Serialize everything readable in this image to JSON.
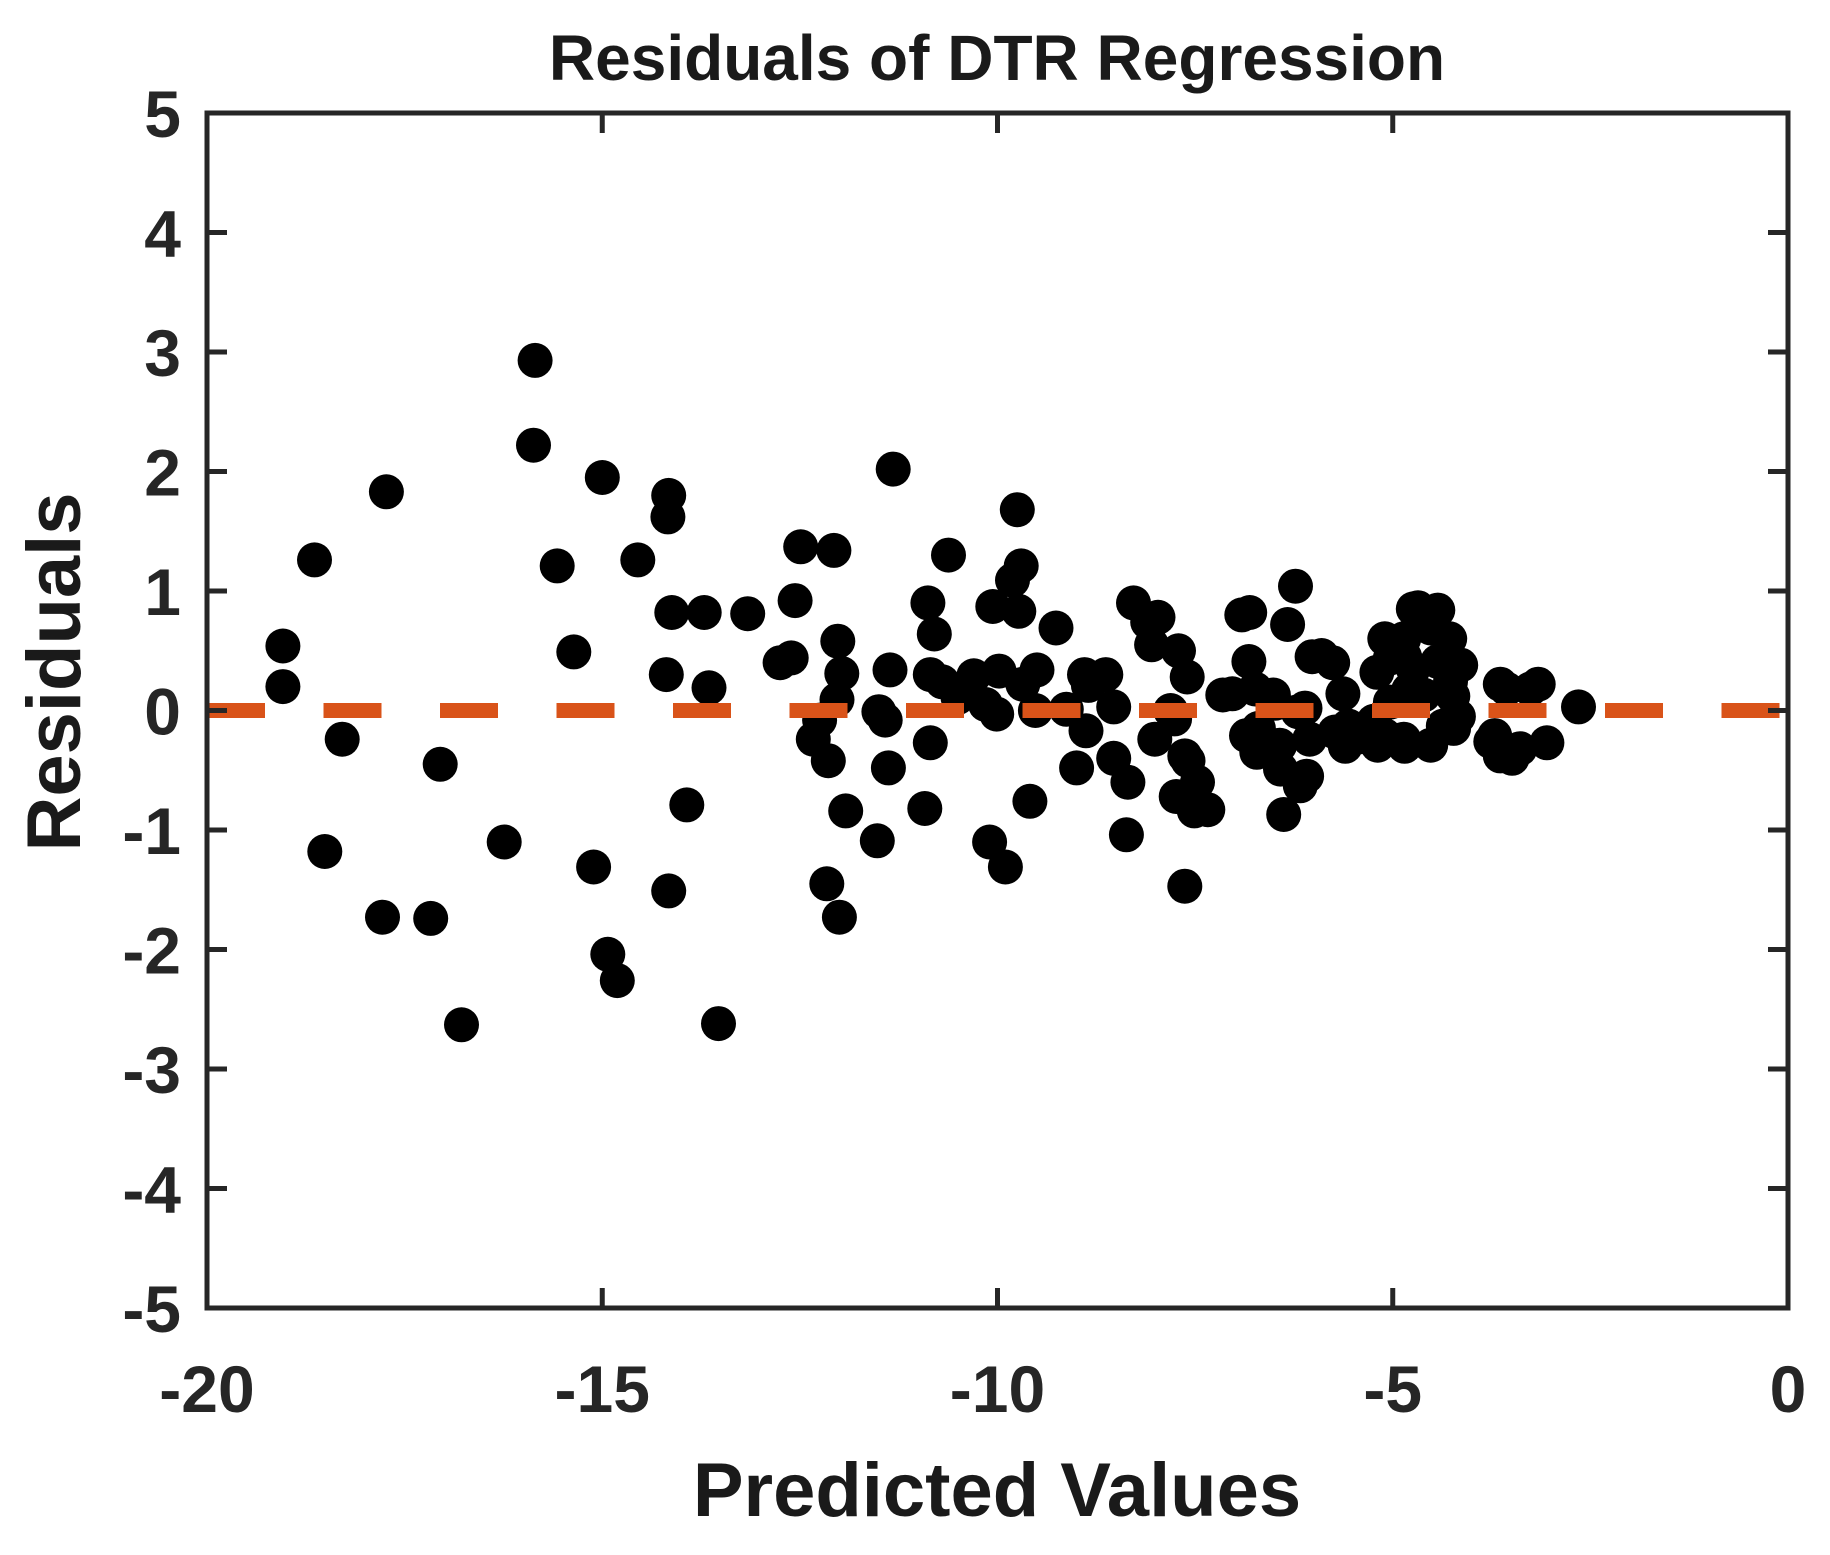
{
  "chart_data": {
    "type": "scatter",
    "title": "Residuals of DTR Regression",
    "xlabel": "Predicted Values",
    "ylabel": "Residuals",
    "xlim": [
      -20,
      0
    ],
    "ylim": [
      -5,
      5
    ],
    "xticks": [
      -20,
      -15,
      -10,
      -5,
      0
    ],
    "xtick_labels": [
      "-20",
      "-15",
      "-10",
      "-5",
      "0"
    ],
    "yticks": [
      5,
      4,
      3,
      2,
      1,
      0,
      -1,
      -2,
      -3,
      -4,
      -5
    ],
    "ytick_labels": [
      "5",
      "4",
      "3",
      "2",
      "1",
      "0",
      "-1",
      "-2",
      "-3",
      "-4",
      "-5"
    ],
    "grid": false,
    "legend": null,
    "marker_color": "#000000",
    "axis_color": "#262626",
    "zero_line": {
      "y": 0,
      "color": "#D95319",
      "style": "dashed"
    },
    "points": [
      [
        -19.04,
        0.54
      ],
      [
        -19.04,
        0.2
      ],
      [
        -18.64,
        1.26
      ],
      [
        -18.51,
        -1.18
      ],
      [
        -18.29,
        -0.24
      ],
      [
        -17.78,
        -1.73
      ],
      [
        -17.73,
        1.83
      ],
      [
        -17.17,
        -1.74
      ],
      [
        -17.05,
        -0.45
      ],
      [
        -16.78,
        -2.63
      ],
      [
        -16.24,
        -1.1
      ],
      [
        -15.87,
        2.22
      ],
      [
        -15.85,
        2.93
      ],
      [
        -15.57,
        1.21
      ],
      [
        -15.36,
        0.49
      ],
      [
        -15.11,
        -1.31
      ],
      [
        -15.0,
        1.95
      ],
      [
        -14.93,
        -2.04
      ],
      [
        -14.81,
        -2.26
      ],
      [
        -14.55,
        1.26
      ],
      [
        -14.19,
        0.3
      ],
      [
        -14.16,
        1.8
      ],
      [
        -14.17,
        1.62
      ],
      [
        -14.12,
        0.82
      ],
      [
        -14.16,
        -1.51
      ],
      [
        -13.93,
        -0.79
      ],
      [
        -13.71,
        0.82
      ],
      [
        -13.65,
        0.19
      ],
      [
        -13.53,
        -2.62
      ],
      [
        -13.16,
        0.81
      ],
      [
        -12.75,
        0.4
      ],
      [
        -12.61,
        0.44
      ],
      [
        -12.56,
        0.92
      ],
      [
        -12.49,
        1.37
      ],
      [
        -12.33,
        -0.24
      ],
      [
        -12.25,
        -0.08
      ],
      [
        -12.16,
        -1.45
      ],
      [
        -12.14,
        -0.42
      ],
      [
        -12.07,
        1.34
      ],
      [
        -12.03,
        0.09
      ],
      [
        -12.02,
        0.58
      ],
      [
        -12.0,
        -1.73
      ],
      [
        -11.97,
        0.31
      ],
      [
        -11.92,
        -0.84
      ],
      [
        -11.52,
        -1.09
      ],
      [
        -11.5,
        -0.01
      ],
      [
        -11.42,
        -0.08
      ],
      [
        -11.38,
        -0.48
      ],
      [
        -11.36,
        0.34
      ],
      [
        -11.32,
        2.02
      ],
      [
        -10.92,
        -0.82
      ],
      [
        -10.88,
        0.9
      ],
      [
        -10.85,
        0.3
      ],
      [
        -10.85,
        -0.27
      ],
      [
        -10.8,
        0.64
      ],
      [
        -10.7,
        0.24
      ],
      [
        -10.62,
        1.3
      ],
      [
        -10.5,
        0.11
      ],
      [
        -10.3,
        0.29
      ],
      [
        -10.15,
        0.05
      ],
      [
        -10.1,
        -1.1
      ],
      [
        -10.06,
        0.87
      ],
      [
        -10.01,
        -0.03
      ],
      [
        -9.98,
        0.33
      ],
      [
        -9.9,
        -1.31
      ],
      [
        -9.81,
        1.09
      ],
      [
        -9.75,
        1.68
      ],
      [
        -9.73,
        0.83
      ],
      [
        -9.7,
        1.21
      ],
      [
        -9.68,
        0.22
      ],
      [
        -9.59,
        -0.76
      ],
      [
        -9.52,
        0.0
      ],
      [
        -9.5,
        0.34
      ],
      [
        -9.26,
        0.69
      ],
      [
        -9.13,
        0.01
      ],
      [
        -9.0,
        -0.48
      ],
      [
        -8.9,
        0.3
      ],
      [
        -8.88,
        -0.17
      ],
      [
        -8.85,
        0.21
      ],
      [
        -8.63,
        0.3
      ],
      [
        -8.53,
        0.03
      ],
      [
        -8.53,
        -0.4
      ],
      [
        -8.37,
        -1.04
      ],
      [
        -8.35,
        -0.6
      ],
      [
        -8.28,
        0.9
      ],
      [
        -8.1,
        0.74
      ],
      [
        -8.05,
        0.55
      ],
      [
        -8.01,
        -0.24
      ],
      [
        -7.97,
        0.78
      ],
      [
        -7.81,
        0.0
      ],
      [
        -7.76,
        -0.07
      ],
      [
        -7.74,
        -0.72
      ],
      [
        -7.71,
        0.5
      ],
      [
        -7.63,
        -1.47
      ],
      [
        -7.6,
        0.28
      ],
      [
        -7.63,
        -0.38
      ],
      [
        -7.59,
        -0.42
      ],
      [
        -7.51,
        -0.84
      ],
      [
        -7.47,
        -0.6
      ],
      [
        -7.34,
        -0.83
      ],
      [
        -7.15,
        0.13
      ],
      [
        -7.03,
        0.14
      ],
      [
        -6.91,
        0.8
      ],
      [
        -6.85,
        -0.21
      ],
      [
        -6.82,
        0.41
      ],
      [
        -6.81,
        0.82
      ],
      [
        -6.74,
        0.18
      ],
      [
        -6.72,
        -0.35
      ],
      [
        -6.7,
        -0.15
      ],
      [
        -6.51,
        0.13
      ],
      [
        -6.49,
        0.06
      ],
      [
        -6.43,
        -0.29
      ],
      [
        -6.42,
        -0.49
      ],
      [
        -6.38,
        -0.87
      ],
      [
        -6.33,
        0.72
      ],
      [
        -6.23,
        1.04
      ],
      [
        -6.2,
        -0.01
      ],
      [
        -6.17,
        -0.63
      ],
      [
        -6.11,
        0.02
      ],
      [
        -6.09,
        -0.55
      ],
      [
        -6.05,
        -0.24
      ],
      [
        -6.02,
        0.45
      ],
      [
        -5.9,
        0.46
      ],
      [
        -5.76,
        0.4
      ],
      [
        -5.73,
        -0.18
      ],
      [
        -5.63,
        0.14
      ],
      [
        -5.6,
        -0.3
      ],
      [
        -5.56,
        -0.13
      ],
      [
        -5.41,
        -0.22
      ],
      [
        -5.24,
        -0.09
      ],
      [
        -5.2,
        0.32
      ],
      [
        -5.19,
        -0.29
      ],
      [
        -5.1,
        0.6
      ],
      [
        -5.1,
        -0.21
      ],
      [
        -5.03,
        0.44
      ],
      [
        -5.03,
        0.07
      ],
      [
        -4.86,
        0.6
      ],
      [
        -4.86,
        -0.24
      ],
      [
        -4.85,
        0.45
      ],
      [
        -4.85,
        -0.3
      ],
      [
        -4.8,
        0.17
      ],
      [
        -4.74,
        0.85
      ],
      [
        -4.74,
        0.35
      ],
      [
        -4.68,
        0.86
      ],
      [
        -4.61,
        0.13
      ],
      [
        -4.52,
        0.69
      ],
      [
        -4.52,
        -0.29
      ],
      [
        -4.43,
        0.84
      ],
      [
        -4.43,
        0.41
      ],
      [
        -4.36,
        -0.13
      ],
      [
        -4.28,
        0.6
      ],
      [
        -4.27,
        0.24
      ],
      [
        -4.24,
        0.12
      ],
      [
        -4.23,
        -0.15
      ],
      [
        -4.17,
        -0.05
      ],
      [
        -4.14,
        0.38
      ],
      [
        -3.76,
        -0.26
      ],
      [
        -3.71,
        -0.21
      ],
      [
        -3.64,
        0.22
      ],
      [
        -3.64,
        -0.38
      ],
      [
        -3.56,
        0.18
      ],
      [
        -3.49,
        -0.4
      ],
      [
        -3.39,
        -0.32
      ],
      [
        -3.26,
        0.18
      ],
      [
        -3.16,
        0.22
      ],
      [
        -3.05,
        -0.27
      ],
      [
        -2.65,
        0.03
      ]
    ]
  }
}
